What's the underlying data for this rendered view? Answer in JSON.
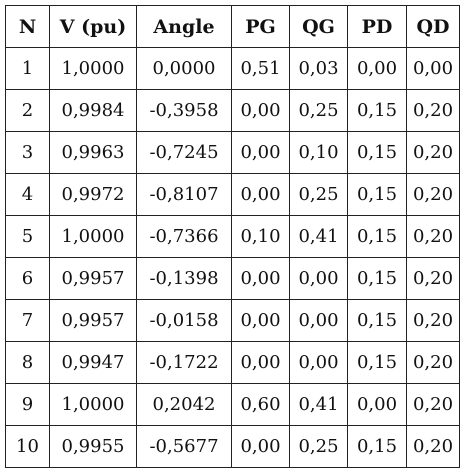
{
  "table": {
    "headers": [
      "N",
      "V (pu)",
      "Angle",
      "PG",
      "QG",
      "PD",
      "QD"
    ],
    "rows": [
      [
        "1",
        "1,0000",
        "0,0000",
        "0,51",
        "0,03",
        "0,00",
        "0,00"
      ],
      [
        "2",
        "0,9984",
        "-0,3958",
        "0,00",
        "0,25",
        "0,15",
        "0,20"
      ],
      [
        "3",
        "0,9963",
        "-0,7245",
        "0,00",
        "0,10",
        "0,15",
        "0,20"
      ],
      [
        "4",
        "0,9972",
        "-0,8107",
        "0,00",
        "0,25",
        "0,15",
        "0,20"
      ],
      [
        "5",
        "1,0000",
        "-0,7366",
        "0,10",
        "0,41",
        "0,15",
        "0,20"
      ],
      [
        "6",
        "0,9957",
        "-0,1398",
        "0,00",
        "0,00",
        "0,15",
        "0,20"
      ],
      [
        "7",
        "0,9957",
        "-0,0158",
        "0,00",
        "0,00",
        "0,15",
        "0,20"
      ],
      [
        "8",
        "0,9947",
        "-0,1722",
        "0,00",
        "0,00",
        "0,15",
        "0,20"
      ],
      [
        "9",
        "1,0000",
        "0,2042",
        "0,60",
        "0,41",
        "0,00",
        "0,20"
      ],
      [
        "10",
        "0,9955",
        "-0,5677",
        "0,00",
        "0,25",
        "0,15",
        "0,20"
      ]
    ]
  }
}
